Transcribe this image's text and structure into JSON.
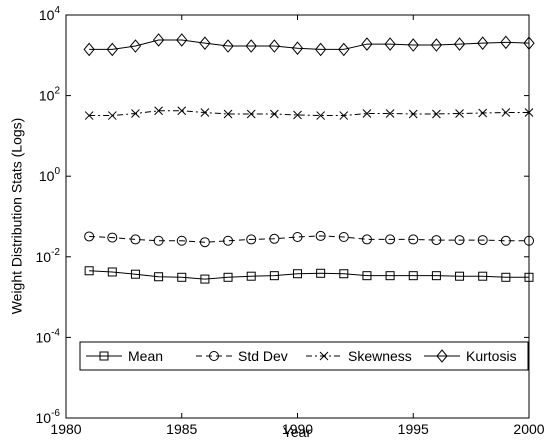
{
  "chart_data": {
    "type": "line",
    "x_label": "Year",
    "y_label": "Weight Distribution Stats (Logs)",
    "x": [
      1981,
      1982,
      1983,
      1984,
      1985,
      1986,
      1987,
      1988,
      1989,
      1990,
      1991,
      1992,
      1993,
      1994,
      1995,
      1996,
      1997,
      1998,
      1999,
      2000
    ],
    "series": [
      {
        "name": "Mean",
        "color": "#000000",
        "marker": "square",
        "linestyle": "solid",
        "values": [
          0.0045,
          0.0042,
          0.0037,
          0.0032,
          0.0031,
          0.0028,
          0.0031,
          0.0033,
          0.0034,
          0.0038,
          0.0039,
          0.0038,
          0.0034,
          0.0034,
          0.0034,
          0.0034,
          0.0033,
          0.0033,
          0.0031,
          0.0031
        ]
      },
      {
        "name": "Std Dev",
        "color": "#000000",
        "marker": "circle",
        "linestyle": "dashed",
        "values": [
          0.032,
          0.03,
          0.027,
          0.025,
          0.025,
          0.023,
          0.025,
          0.027,
          0.028,
          0.031,
          0.033,
          0.031,
          0.027,
          0.027,
          0.027,
          0.026,
          0.026,
          0.026,
          0.025,
          0.025
        ]
      },
      {
        "name": "Skewness",
        "color": "#000000",
        "marker": "x",
        "linestyle": "dashdot",
        "values": [
          32,
          32,
          36,
          42,
          42,
          38,
          35,
          35,
          35,
          33,
          32,
          32,
          36,
          36,
          35,
          35,
          36,
          37,
          38,
          38
        ]
      },
      {
        "name": "Kurtosis",
        "color": "#000000",
        "marker": "diamond",
        "linestyle": "solid",
        "values": [
          1400,
          1400,
          1700,
          2400,
          2400,
          2000,
          1700,
          1700,
          1700,
          1500,
          1400,
          1400,
          1900,
          1900,
          1800,
          1800,
          1900,
          2000,
          2100,
          2000
        ]
      }
    ],
    "xlim": [
      1980,
      2000
    ],
    "xticks": [
      1980,
      1985,
      1990,
      1995,
      2000
    ],
    "ylim": [
      1e-06,
      10000
    ],
    "yticks": [
      {
        "value": 1e-06,
        "label": "10^-6"
      },
      {
        "value": 0.0001,
        "label": "10^-4"
      },
      {
        "value": 0.01,
        "label": "10^-2"
      },
      {
        "value": 1,
        "label": "10^0"
      },
      {
        "value": 100,
        "label": "10^2"
      },
      {
        "value": 10000,
        "label": "10^4"
      }
    ],
    "y_scale": "log",
    "grid": false,
    "legend": "lower center"
  }
}
